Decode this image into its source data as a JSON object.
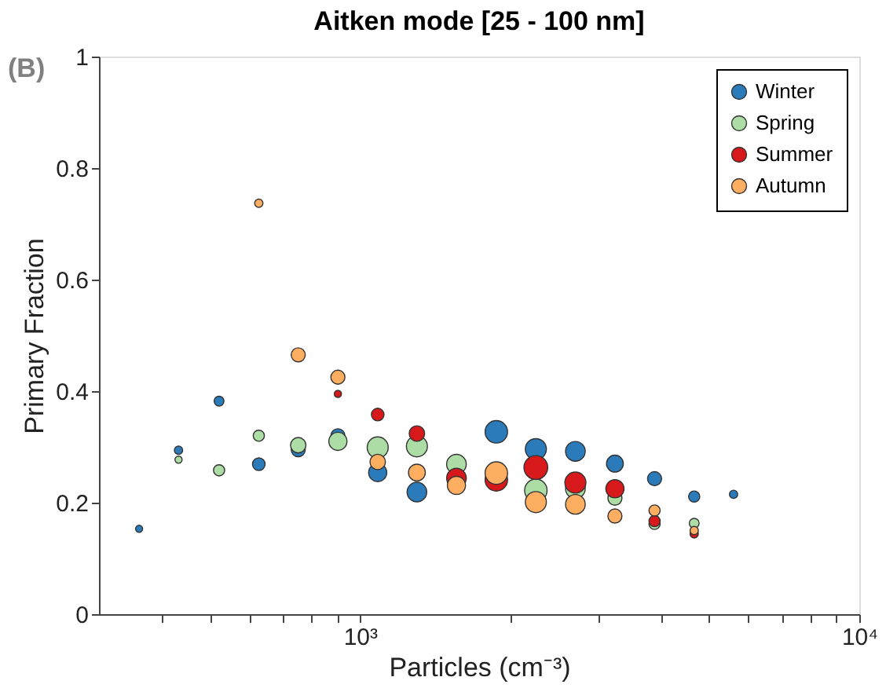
{
  "chart_data": {
    "type": "bubble",
    "title": "Aitken mode [25 - 100 nm]",
    "xlabel": "Particles (cm⁻³)",
    "ylabel": "Primary Fraction",
    "annotations": [
      "(B)"
    ],
    "log": "x",
    "xlim": [
      300,
      10000
    ],
    "ylim": [
      0,
      1
    ],
    "xticks": [
      {
        "value": 400,
        "label": null
      },
      {
        "value": 500,
        "label": null
      },
      {
        "value": 600,
        "label": null
      },
      {
        "value": 700,
        "label": null
      },
      {
        "value": 800,
        "label": null
      },
      {
        "value": 900,
        "label": null
      },
      {
        "value": 1000,
        "label": "10³"
      },
      {
        "value": 2000,
        "label": null
      },
      {
        "value": 3000,
        "label": null
      },
      {
        "value": 4000,
        "label": null
      },
      {
        "value": 5000,
        "label": null
      },
      {
        "value": 6000,
        "label": null
      },
      {
        "value": 7000,
        "label": null
      },
      {
        "value": 8000,
        "label": null
      },
      {
        "value": 9000,
        "label": null
      },
      {
        "value": 10000,
        "label": "10⁴"
      }
    ],
    "yticks": [
      0,
      0.2,
      0.4,
      0.6,
      0.8,
      1
    ],
    "grid": false,
    "legend": "top right",
    "marker": "circle",
    "series": [
      {
        "name": "Winter",
        "color": "#2b7bba",
        "x": [
          361,
          433,
          522,
          627,
          752,
          903,
          1085,
          1300,
          1560,
          1875,
          2250,
          2700,
          3240,
          3890,
          4670,
          5600
        ],
        "values": [
          0.153,
          0.294,
          0.382,
          0.269,
          0.295,
          0.32,
          0.254,
          0.219,
          null,
          0.327,
          0.296,
          0.292,
          0.27,
          0.243,
          0.211,
          0.215
        ],
        "sizes": [
          0.09,
          0.12,
          0.17,
          0.28,
          0.35,
          0.35,
          0.58,
          0.68,
          null,
          0.89,
          0.78,
          0.68,
          0.5,
          0.35,
          0.22,
          0.12
        ]
      },
      {
        "name": "Spring",
        "color": "#abdda4",
        "x": [
          433,
          522,
          627,
          752,
          903,
          1085,
          1300,
          1560,
          2250,
          2700,
          3240,
          3890,
          4670
        ],
        "values": [
          0.277,
          0.258,
          0.32,
          0.303,
          0.31,
          0.299,
          0.301,
          0.269,
          0.222,
          0.225,
          0.208,
          0.162,
          0.163
        ],
        "sizes": [
          0.09,
          0.22,
          0.22,
          0.42,
          0.58,
          0.78,
          0.78,
          0.68,
          0.89,
          0.68,
          0.35,
          0.22,
          0.17
        ]
      },
      {
        "name": "Summer",
        "color": "#d7191c",
        "x": [
          903,
          1085,
          1300,
          1560,
          1875,
          2250,
          2700,
          3240,
          3890,
          4670
        ],
        "values": [
          0.395,
          0.358,
          0.324,
          0.244,
          0.241,
          0.263,
          0.236,
          0.225,
          0.167,
          0.144
        ],
        "sizes": [
          0.09,
          0.28,
          0.42,
          0.68,
          0.89,
          1,
          0.78,
          0.58,
          0.22,
          0.12
        ]
      },
      {
        "name": "Autumn",
        "color": "#fdae61",
        "x": [
          627,
          752,
          903,
          1085,
          1300,
          1560,
          1875,
          2250,
          2700,
          3240,
          3890,
          4670
        ],
        "values": [
          0.737,
          0.465,
          0.425,
          0.273,
          0.254,
          0.231,
          0.253,
          0.201,
          0.197,
          0.176,
          0.186,
          0.15
        ],
        "sizes": [
          0.12,
          0.35,
          0.35,
          0.42,
          0.5,
          0.58,
          0.89,
          0.78,
          0.68,
          0.35,
          0.22,
          0.12
        ]
      }
    ]
  }
}
